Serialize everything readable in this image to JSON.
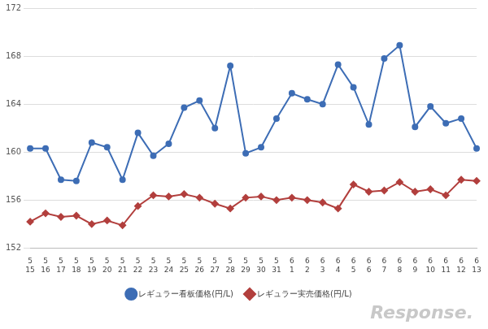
{
  "chart_data": {
    "type": "line",
    "categories": [
      [
        "5",
        "15"
      ],
      [
        "5",
        "16"
      ],
      [
        "5",
        "17"
      ],
      [
        "5",
        "18"
      ],
      [
        "5",
        "19"
      ],
      [
        "5",
        "20"
      ],
      [
        "5",
        "21"
      ],
      [
        "5",
        "22"
      ],
      [
        "5",
        "23"
      ],
      [
        "5",
        "24"
      ],
      [
        "5",
        "25"
      ],
      [
        "5",
        "26"
      ],
      [
        "5",
        "27"
      ],
      [
        "5",
        "28"
      ],
      [
        "5",
        "29"
      ],
      [
        "5",
        "30"
      ],
      [
        "5",
        "31"
      ],
      [
        "6",
        "1"
      ],
      [
        "6",
        "2"
      ],
      [
        "6",
        "3"
      ],
      [
        "6",
        "4"
      ],
      [
        "6",
        "5"
      ],
      [
        "6",
        "6"
      ],
      [
        "6",
        "7"
      ],
      [
        "6",
        "8"
      ],
      [
        "6",
        "9"
      ],
      [
        "6",
        "10"
      ],
      [
        "6",
        "11"
      ],
      [
        "6",
        "12"
      ],
      [
        "6",
        "13"
      ]
    ],
    "series": [
      {
        "name": "レギュラー看板価格(円/L)",
        "color": "#3d6db5",
        "marker": "circle",
        "values": [
          160.3,
          160.3,
          157.7,
          157.6,
          160.8,
          160.4,
          157.7,
          161.6,
          159.7,
          160.7,
          163.7,
          164.3,
          162.0,
          167.2,
          159.9,
          160.4,
          162.8,
          164.9,
          164.4,
          164.0,
          167.3,
          165.4,
          162.3,
          167.8,
          168.9,
          162.1,
          163.8,
          162.4,
          162.8,
          160.3
        ]
      },
      {
        "name": "レギュラー実売価格(円/L)",
        "color": "#b23f3d",
        "marker": "diamond",
        "values": [
          154.2,
          154.9,
          154.6,
          154.7,
          154.0,
          154.3,
          153.9,
          155.5,
          156.4,
          156.3,
          156.5,
          156.2,
          155.7,
          155.3,
          156.2,
          156.3,
          156.0,
          156.2,
          156.0,
          155.8,
          155.3,
          157.3,
          156.7,
          156.8,
          157.5,
          156.7,
          156.9,
          156.4,
          157.7,
          157.6
        ]
      }
    ],
    "ylim": [
      152,
      172
    ],
    "yticks": [
      152,
      156,
      160,
      164,
      168,
      172
    ],
    "grid": true,
    "legend": "bottom",
    "annotation": "Response."
  }
}
